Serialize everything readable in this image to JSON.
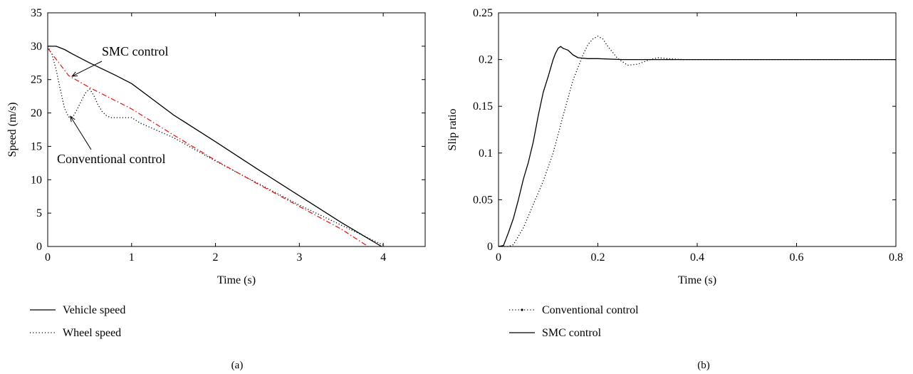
{
  "chart_data": [
    {
      "panel_label": "(a)",
      "type": "line",
      "xlabel": "Time (s)",
      "ylabel": "Speed (m/s)",
      "xlim": [
        0,
        4.5
      ],
      "ylim": [
        0,
        35
      ],
      "xticks": [
        0,
        1,
        2,
        3,
        4
      ],
      "yticks": [
        0,
        5,
        10,
        15,
        20,
        25,
        30,
        35
      ],
      "grid": false,
      "legend_position": "below-left",
      "series": [
        {
          "name": "Vehicle speed",
          "style": "solid",
          "color": "#000000",
          "x": [
            0,
            0.1,
            0.2,
            0.3,
            0.5,
            0.8,
            1.0,
            1.5,
            2.0,
            2.5,
            3.0,
            3.5,
            3.98
          ],
          "y": [
            30,
            30,
            29.5,
            28.8,
            27.5,
            25.7,
            24.4,
            19.7,
            15.7,
            11.6,
            7.6,
            3.6,
            0
          ]
        },
        {
          "name": "Wheel speed",
          "style": "dotted",
          "color": "#000000",
          "x": [
            0,
            0.05,
            0.1,
            0.15,
            0.2,
            0.25,
            0.3,
            0.35,
            0.4,
            0.45,
            0.5,
            0.55,
            0.6,
            0.65,
            0.7,
            0.75,
            0.8,
            0.9,
            1.0,
            1.1,
            1.5,
            2.0,
            2.5,
            3.0,
            3.5,
            4.0
          ],
          "y": [
            30,
            28.8,
            26.5,
            23.5,
            20.7,
            19.4,
            19.4,
            20.5,
            21.8,
            23,
            23.6,
            22.6,
            21.2,
            20.2,
            19.6,
            19.3,
            19.3,
            19.3,
            19.3,
            18.5,
            16.3,
            12.8,
            9.5,
            6.2,
            3.2,
            0.2
          ]
        },
        {
          "style": "dash-dot",
          "color": "#e0201b",
          "x": [
            0,
            0.25,
            0.5,
            1.0,
            1.5,
            2.0,
            2.5,
            3.0,
            3.5,
            3.82
          ],
          "y": [
            29.7,
            25.6,
            23.8,
            20.6,
            16.7,
            12.9,
            9.4,
            6.0,
            2.6,
            0
          ]
        }
      ],
      "annotations": [
        {
          "text": "SMC control",
          "arrow_to": {
            "x": 0.29,
            "y": 25.5
          }
        },
        {
          "text": "Conventional control",
          "arrow_to": {
            "x": 0.27,
            "y": 19.5
          }
        }
      ]
    },
    {
      "panel_label": "(b)",
      "type": "line",
      "xlabel": "Time (s)",
      "ylabel": "Slip ratio",
      "xlim": [
        0,
        0.8
      ],
      "ylim": [
        0,
        0.25
      ],
      "xticks": [
        0,
        0.2,
        0.4,
        0.6,
        0.8
      ],
      "yticks": [
        0,
        0.05,
        0.1,
        0.15,
        0.2,
        0.25
      ],
      "grid": false,
      "legend_position": "below-left",
      "series": [
        {
          "name": "Conventional control",
          "style": "dotted",
          "color": "#000000",
          "x": [
            0,
            0.02,
            0.03,
            0.05,
            0.07,
            0.09,
            0.11,
            0.13,
            0.15,
            0.17,
            0.18,
            0.19,
            0.2,
            0.21,
            0.22,
            0.24,
            0.26,
            0.28,
            0.3,
            0.32,
            0.34,
            0.37,
            0.4,
            0.5,
            0.6,
            0.7,
            0.8
          ],
          "y": [
            0,
            0,
            0.002,
            0.02,
            0.045,
            0.07,
            0.1,
            0.14,
            0.178,
            0.205,
            0.216,
            0.222,
            0.225,
            0.222,
            0.214,
            0.201,
            0.194,
            0.195,
            0.199,
            0.202,
            0.201,
            0.2,
            0.2,
            0.2,
            0.2,
            0.2,
            0.2
          ]
        },
        {
          "name": "SMC control",
          "style": "solid",
          "color": "#000000",
          "x": [
            0,
            0.01,
            0.02,
            0.03,
            0.04,
            0.05,
            0.06,
            0.07,
            0.08,
            0.09,
            0.1,
            0.11,
            0.115,
            0.12,
            0.125,
            0.13,
            0.135,
            0.14,
            0.15,
            0.16,
            0.18,
            0.2,
            0.25,
            0.3,
            0.4,
            0.6,
            0.8
          ],
          "y": [
            0,
            0.001,
            0.015,
            0.03,
            0.05,
            0.072,
            0.09,
            0.112,
            0.14,
            0.165,
            0.182,
            0.2,
            0.207,
            0.212,
            0.214,
            0.212,
            0.211,
            0.21,
            0.205,
            0.202,
            0.201,
            0.201,
            0.2,
            0.2,
            0.2,
            0.2,
            0.2
          ]
        }
      ]
    }
  ]
}
